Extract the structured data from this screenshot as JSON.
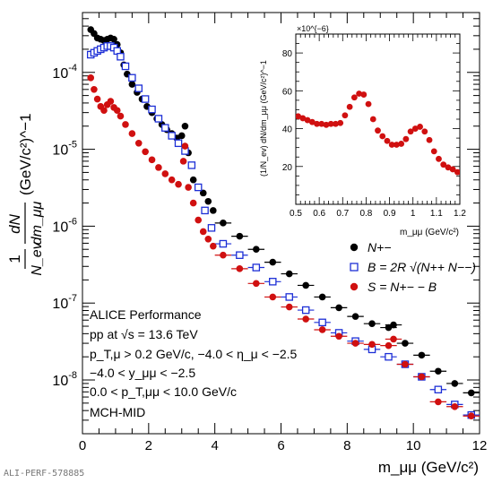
{
  "chart_data": [
    {
      "type": "scatter",
      "ylog": true,
      "xlim": [
        0,
        12
      ],
      "ylim": [
        2e-09,
        0.0006
      ],
      "x_ticks": [
        "0",
        "2",
        "4",
        "6",
        "8",
        "10",
        "12"
      ],
      "y_ticks": [
        "10^{-8}",
        "10^{-7}",
        "10^{-6}",
        "10^{-5}",
        "10^{-4}"
      ],
      "xlabel": "m_μμ (GeV/c²)",
      "ylabel_frac_top": "1",
      "ylabel_frac_bottom": "N_ev",
      "ylabel_frac2_top": "dN",
      "ylabel_frac2_bottom": "dm_μμ",
      "ylabel_unit": "(GeV/c²)^−1",
      "legend_position": "middle-right",
      "grid": false,
      "series": [
        {
          "name": "N+−",
          "marker": "filled-circle",
          "color": "#000000",
          "points": [
            [
              0.25,
              0.00036
            ],
            [
              0.35,
              0.00032
            ],
            [
              0.45,
              0.00028
            ],
            [
              0.55,
              0.00027
            ],
            [
              0.65,
              0.00026
            ],
            [
              0.75,
              0.00027
            ],
            [
              0.85,
              0.00028
            ],
            [
              0.95,
              0.00027
            ],
            [
              1.05,
              0.00023
            ],
            [
              1.15,
              0.00018
            ],
            [
              1.25,
              0.000125
            ],
            [
              1.35,
              9.5e-05
            ],
            [
              1.5,
              7e-05
            ],
            [
              1.65,
              5.5e-05
            ],
            [
              1.8,
              4.5e-05
            ],
            [
              1.95,
              3.6e-05
            ],
            [
              2.1,
              3e-05
            ],
            [
              2.25,
              2.5e-05
            ],
            [
              2.4,
              2.1e-05
            ],
            [
              2.55,
              1.8e-05
            ],
            [
              2.7,
              1.6e-05
            ],
            [
              2.85,
              1.4e-05
            ],
            [
              3.0,
              1.5e-05
            ],
            [
              3.1,
              2e-05
            ],
            [
              3.2,
              9e-06
            ],
            [
              3.35,
              4e-06
            ],
            [
              3.5,
              3.2e-06
            ],
            [
              3.65,
              2.7e-06
            ],
            [
              3.8,
              2.1e-06
            ],
            [
              3.95,
              1.6e-06
            ],
            [
              4.25,
              1.1e-06
            ],
            [
              4.75,
              7.4e-07
            ],
            [
              5.25,
              5e-07
            ],
            [
              5.75,
              3.4e-07
            ],
            [
              6.25,
              2.4e-07
            ],
            [
              6.75,
              1.7e-07
            ],
            [
              7.25,
              1.2e-07
            ],
            [
              7.75,
              8.7e-08
            ],
            [
              8.25,
              6.7e-08
            ],
            [
              8.75,
              5.4e-08
            ],
            [
              9.25,
              4.8e-08
            ],
            [
              9.4,
              5.2e-08
            ],
            [
              9.75,
              3e-08
            ],
            [
              10.25,
              2.1e-08
            ],
            [
              10.75,
              1.3e-08
            ],
            [
              11.25,
              9e-09
            ],
            [
              11.75,
              6.8e-09
            ]
          ]
        },
        {
          "name": "B = 2R √(N++ N−−)",
          "marker": "open-square",
          "color": "#1d2fd6",
          "points": [
            [
              0.25,
              0.00017
            ],
            [
              0.35,
              0.00018
            ],
            [
              0.45,
              0.00019
            ],
            [
              0.55,
              0.0002
            ],
            [
              0.65,
              0.00021
            ],
            [
              0.75,
              0.00022
            ],
            [
              0.85,
              0.00022
            ],
            [
              0.95,
              0.00021
            ],
            [
              1.05,
              0.00019
            ],
            [
              1.15,
              0.00016
            ],
            [
              1.3,
              0.00012
            ],
            [
              1.5,
              8.5e-05
            ],
            [
              1.7,
              6.2e-05
            ],
            [
              1.9,
              4.5e-05
            ],
            [
              2.1,
              3.3e-05
            ],
            [
              2.3,
              2.5e-05
            ],
            [
              2.5,
              1.9e-05
            ],
            [
              2.7,
              1.5e-05
            ],
            [
              2.9,
              1.2e-05
            ],
            [
              3.1,
              9.5e-06
            ],
            [
              3.3,
              6.2e-06
            ],
            [
              3.5,
              3.2e-06
            ],
            [
              3.7,
              1.6e-06
            ],
            [
              3.9,
              9.5e-07
            ],
            [
              4.25,
              5.9e-07
            ],
            [
              4.75,
              4.2e-07
            ],
            [
              5.25,
              2.9e-07
            ],
            [
              5.75,
              1.9e-07
            ],
            [
              6.25,
              1.2e-07
            ],
            [
              6.75,
              8.1e-08
            ],
            [
              7.25,
              5.6e-08
            ],
            [
              7.75,
              4.1e-08
            ],
            [
              8.25,
              3.2e-08
            ],
            [
              8.75,
              2.5e-08
            ],
            [
              9.25,
              2e-08
            ],
            [
              9.75,
              1.6e-08
            ],
            [
              10.25,
              1.1e-08
            ],
            [
              10.75,
              7.5e-09
            ],
            [
              11.25,
              4.8e-09
            ],
            [
              11.75,
              3.5e-09
            ]
          ]
        },
        {
          "name": "S = N+− − B",
          "marker": "filled-circle",
          "color": "#d01010",
          "points": [
            [
              0.25,
              8.5e-05
            ],
            [
              0.35,
              6e-05
            ],
            [
              0.45,
              4.5e-05
            ],
            [
              0.55,
              3.6e-05
            ],
            [
              0.65,
              3.2e-05
            ],
            [
              0.75,
              3.8e-05
            ],
            [
              0.85,
              4.2e-05
            ],
            [
              0.95,
              3.5e-05
            ],
            [
              1.05,
              3.2e-05
            ],
            [
              1.15,
              2.7e-05
            ],
            [
              1.3,
              2.1e-05
            ],
            [
              1.5,
              1.6e-05
            ],
            [
              1.7,
              1.2e-05
            ],
            [
              1.9,
              9.3e-06
            ],
            [
              2.1,
              7.3e-06
            ],
            [
              2.3,
              5.8e-06
            ],
            [
              2.5,
              4.8e-06
            ],
            [
              2.7,
              4e-06
            ],
            [
              2.9,
              3.5e-06
            ],
            [
              3.05,
              7e-06
            ],
            [
              3.1,
              1.1e-05
            ],
            [
              3.2,
              3.2e-06
            ],
            [
              3.35,
              2e-06
            ],
            [
              3.5,
              1.2e-06
            ],
            [
              3.65,
              8.5e-07
            ],
            [
              3.8,
              6.8e-07
            ],
            [
              3.95,
              5.5e-07
            ],
            [
              4.25,
              4.2e-07
            ],
            [
              4.75,
              2.8e-07
            ],
            [
              5.25,
              1.8e-07
            ],
            [
              5.75,
              1.2e-07
            ],
            [
              6.25,
              8.9e-08
            ],
            [
              6.75,
              6.2e-08
            ],
            [
              7.25,
              4.5e-08
            ],
            [
              7.75,
              3.7e-08
            ],
            [
              8.25,
              3e-08
            ],
            [
              8.75,
              2.9e-08
            ],
            [
              9.25,
              2.8e-08
            ],
            [
              9.4,
              3.4e-08
            ],
            [
              9.75,
              1.6e-08
            ],
            [
              10.25,
              1.1e-08
            ],
            [
              10.75,
              5.2e-09
            ],
            [
              11.25,
              4.5e-09
            ],
            [
              11.75,
              3.4e-09
            ]
          ]
        }
      ],
      "legend": [
        "N+−",
        "B = 2R √(N++ N−−)",
        "S = N+− − B"
      ],
      "annotations": [
        "ALICE Performance",
        "pp at √s = 13.6 TeV",
        "p_T,μ > 0.2 GeV/c, −4.0 < η_μ < −2.5",
        "−4.0 < y_μμ < −2.5",
        "0.0 < p_T,μμ < 10.0 GeV/c",
        "MCH-MID"
      ]
    },
    {
      "type": "scatter",
      "xlim": [
        0.5,
        1.2
      ],
      "ylim": [
        0,
        90
      ],
      "y_multiplier": "×10^{−6}",
      "x_ticks": [
        "0.5",
        "0.6",
        "0.7",
        "0.8",
        "0.9",
        "1",
        "1.1",
        "1.2"
      ],
      "y_ticks": [
        "20",
        "40",
        "60",
        "80"
      ],
      "xlabel": "m_μμ (GeV/c²)",
      "ylabel": "(1/N_ev) dN/dm_μμ (GeV/c²)^−1",
      "series": [
        {
          "name": "S",
          "color": "#d01010",
          "points": [
            [
              0.51,
              46.5
            ],
            [
              0.53,
              45.5
            ],
            [
              0.55,
              44.5
            ],
            [
              0.57,
              43.5
            ],
            [
              0.59,
              42.5
            ],
            [
              0.61,
              42.5
            ],
            [
              0.63,
              42.0
            ],
            [
              0.65,
              42.5
            ],
            [
              0.67,
              42.5
            ],
            [
              0.69,
              43.0
            ],
            [
              0.71,
              47.0
            ],
            [
              0.73,
              51.5
            ],
            [
              0.75,
              56.5
            ],
            [
              0.77,
              58.5
            ],
            [
              0.79,
              58.0
            ],
            [
              0.81,
              53.0
            ],
            [
              0.83,
              45.0
            ],
            [
              0.85,
              39.0
            ],
            [
              0.87,
              36.0
            ],
            [
              0.89,
              33.5
            ],
            [
              0.91,
              31.5
            ],
            [
              0.93,
              31.5
            ],
            [
              0.95,
              32.0
            ],
            [
              0.97,
              34.5
            ],
            [
              0.99,
              38.5
            ],
            [
              1.01,
              40.0
            ],
            [
              1.03,
              41.0
            ],
            [
              1.05,
              38.5
            ],
            [
              1.07,
              34.0
            ],
            [
              1.09,
              28.0
            ],
            [
              1.11,
              24.0
            ],
            [
              1.13,
              21.0
            ],
            [
              1.15,
              19.5
            ],
            [
              1.17,
              18.5
            ],
            [
              1.19,
              17.0
            ]
          ]
        }
      ]
    }
  ],
  "footer": {
    "record_id": "ALI-PERF-578885"
  }
}
